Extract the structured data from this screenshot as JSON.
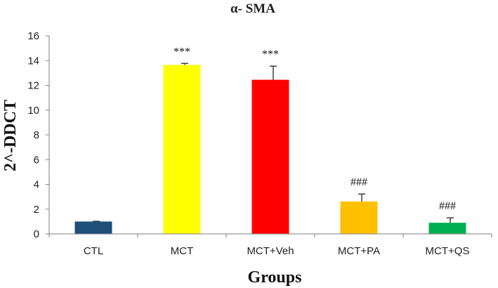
{
  "chart_data": {
    "type": "bar",
    "title": "α- SMA",
    "xlabel": "Groups",
    "ylabel": "2^-DDCT",
    "ylim": [
      0,
      16
    ],
    "yticks": [
      0,
      2,
      4,
      6,
      8,
      10,
      12,
      14,
      16
    ],
    "grid": false,
    "legend": "none",
    "categories": [
      "CTL",
      "MCT",
      "MCT+Veh",
      "MCT+PA",
      "MCT+QS"
    ],
    "values": [
      1.0,
      13.65,
      12.45,
      2.62,
      0.9
    ],
    "errors": [
      0.02,
      0.12,
      1.1,
      0.6,
      0.4
    ],
    "colors": [
      "#1F4E79",
      "#FFFF00",
      "#FF0000",
      "#FFC000",
      "#00B050"
    ],
    "annotations": [
      "",
      "***",
      "***",
      "###",
      "###"
    ]
  }
}
